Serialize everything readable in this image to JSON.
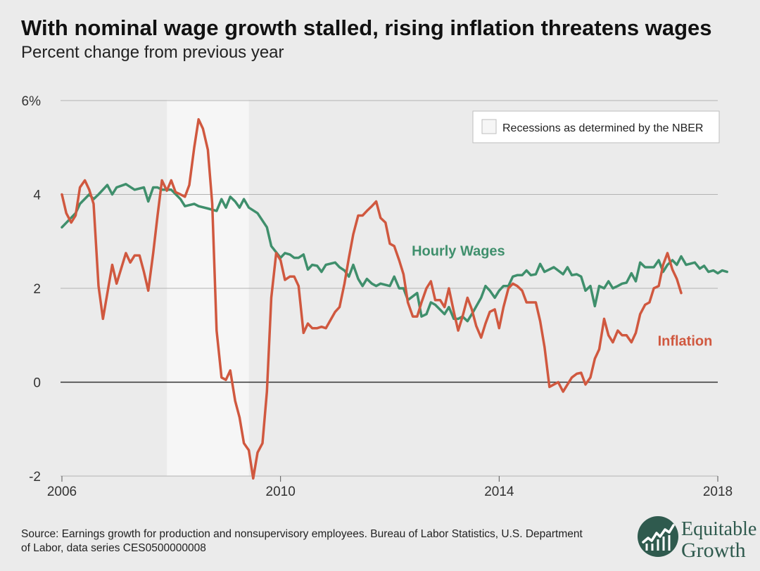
{
  "header": {
    "title": "With nominal wage growth stalled, rising inflation threatens wages",
    "subtitle": "Percent change from previous year"
  },
  "legend": {
    "recession_label": "Recessions as determined by the NBER"
  },
  "source": "Source: Earnings growth for production and nonsupervisory employees. Bureau of Labor Statistics, U.S. Department of Labor, data series CES0500000008",
  "logo": {
    "line1": "Equitable",
    "line2": "Growth",
    "color": "#2f5a4e"
  },
  "chart_data": {
    "type": "line",
    "title": "With nominal wage growth stalled, rising inflation threatens wages",
    "subtitle": "Percent change from previous year",
    "xlim": [
      2006,
      2018
    ],
    "ylim": [
      -2,
      6
    ],
    "x_ticks": [
      2006,
      2010,
      2014,
      2018
    ],
    "x_tick_labels": [
      "2006",
      "2010",
      "2014",
      "2018"
    ],
    "y_ticks": [
      -2,
      0,
      2,
      4,
      6
    ],
    "y_tick_labels": [
      "-2",
      "0",
      "2",
      "4",
      "6%"
    ],
    "grid": true,
    "legend_position": "top-right",
    "recession": {
      "start": 2007.92,
      "end": 2009.42,
      "label": "Recessions as determined by the NBER"
    },
    "series": [
      {
        "name": "Hourly Wages",
        "color": "#3f8f6c",
        "label_at": [
          2012.4,
          2.7
        ],
        "points": [
          [
            2006.0,
            3.3
          ],
          [
            2006.25,
            3.6
          ],
          [
            2006.33,
            3.8
          ],
          [
            2006.5,
            4.0
          ],
          [
            2006.58,
            3.9
          ],
          [
            2006.67,
            4.0
          ],
          [
            2006.83,
            4.2
          ],
          [
            2006.92,
            4.0
          ],
          [
            2007.0,
            4.15
          ],
          [
            2007.17,
            4.22
          ],
          [
            2007.33,
            4.1
          ],
          [
            2007.5,
            4.15
          ],
          [
            2007.58,
            3.85
          ],
          [
            2007.67,
            4.15
          ],
          [
            2007.75,
            4.15
          ],
          [
            2007.83,
            4.1
          ],
          [
            2008.0,
            4.1
          ],
          [
            2008.17,
            3.9
          ],
          [
            2008.25,
            3.75
          ],
          [
            2008.42,
            3.8
          ],
          [
            2008.5,
            3.75
          ],
          [
            2008.67,
            3.7
          ],
          [
            2008.83,
            3.65
          ],
          [
            2008.92,
            3.9
          ],
          [
            2009.0,
            3.72
          ],
          [
            2009.08,
            3.95
          ],
          [
            2009.17,
            3.85
          ],
          [
            2009.25,
            3.72
          ],
          [
            2009.33,
            3.9
          ],
          [
            2009.42,
            3.72
          ],
          [
            2009.58,
            3.6
          ],
          [
            2009.75,
            3.3
          ],
          [
            2009.83,
            2.9
          ],
          [
            2010.0,
            2.65
          ],
          [
            2010.08,
            2.75
          ],
          [
            2010.17,
            2.72
          ],
          [
            2010.25,
            2.65
          ],
          [
            2010.33,
            2.65
          ],
          [
            2010.42,
            2.72
          ],
          [
            2010.5,
            2.4
          ],
          [
            2010.58,
            2.5
          ],
          [
            2010.67,
            2.48
          ],
          [
            2010.75,
            2.35
          ],
          [
            2010.83,
            2.5
          ],
          [
            2011.0,
            2.55
          ],
          [
            2011.08,
            2.45
          ],
          [
            2011.17,
            2.38
          ],
          [
            2011.25,
            2.25
          ],
          [
            2011.33,
            2.5
          ],
          [
            2011.42,
            2.2
          ],
          [
            2011.5,
            2.05
          ],
          [
            2011.58,
            2.2
          ],
          [
            2011.67,
            2.1
          ],
          [
            2011.75,
            2.05
          ],
          [
            2011.83,
            2.1
          ],
          [
            2012.0,
            2.05
          ],
          [
            2012.08,
            2.25
          ],
          [
            2012.17,
            2.0
          ],
          [
            2012.25,
            2.0
          ],
          [
            2012.33,
            1.75
          ],
          [
            2012.5,
            1.9
          ],
          [
            2012.58,
            1.4
          ],
          [
            2012.67,
            1.45
          ],
          [
            2012.75,
            1.7
          ],
          [
            2012.83,
            1.65
          ],
          [
            2013.0,
            1.45
          ],
          [
            2013.08,
            1.6
          ],
          [
            2013.17,
            1.35
          ],
          [
            2013.25,
            1.35
          ],
          [
            2013.33,
            1.4
          ],
          [
            2013.42,
            1.3
          ],
          [
            2013.5,
            1.45
          ],
          [
            2013.67,
            1.8
          ],
          [
            2013.75,
            2.05
          ],
          [
            2013.83,
            1.95
          ],
          [
            2013.92,
            1.8
          ],
          [
            2014.0,
            1.95
          ],
          [
            2014.08,
            2.05
          ],
          [
            2014.17,
            2.05
          ],
          [
            2014.25,
            2.25
          ],
          [
            2014.33,
            2.28
          ],
          [
            2014.42,
            2.28
          ],
          [
            2014.5,
            2.38
          ],
          [
            2014.58,
            2.28
          ],
          [
            2014.67,
            2.3
          ],
          [
            2014.75,
            2.52
          ],
          [
            2014.83,
            2.35
          ],
          [
            2015.0,
            2.45
          ],
          [
            2015.17,
            2.3
          ],
          [
            2015.25,
            2.45
          ],
          [
            2015.33,
            2.28
          ],
          [
            2015.42,
            2.3
          ],
          [
            2015.5,
            2.25
          ],
          [
            2015.58,
            1.95
          ],
          [
            2015.67,
            2.05
          ],
          [
            2015.75,
            1.62
          ],
          [
            2015.83,
            2.05
          ],
          [
            2015.92,
            2.0
          ],
          [
            2016.0,
            2.15
          ],
          [
            2016.08,
            2.0
          ],
          [
            2016.17,
            2.05
          ],
          [
            2016.25,
            2.1
          ],
          [
            2016.33,
            2.12
          ],
          [
            2016.42,
            2.32
          ],
          [
            2016.5,
            2.15
          ],
          [
            2016.58,
            2.55
          ],
          [
            2016.67,
            2.45
          ],
          [
            2016.83,
            2.45
          ],
          [
            2016.92,
            2.6
          ],
          [
            2017.0,
            2.35
          ],
          [
            2017.08,
            2.5
          ],
          [
            2017.17,
            2.6
          ],
          [
            2017.25,
            2.5
          ],
          [
            2017.33,
            2.68
          ],
          [
            2017.42,
            2.5
          ],
          [
            2017.58,
            2.55
          ],
          [
            2017.67,
            2.42
          ],
          [
            2017.75,
            2.48
          ],
          [
            2017.83,
            2.35
          ],
          [
            2017.92,
            2.38
          ],
          [
            2018.0,
            2.32
          ],
          [
            2018.08,
            2.38
          ],
          [
            2018.17,
            2.35
          ]
        ]
      },
      {
        "name": "Inflation",
        "color": "#d0583f",
        "label_at": [
          2016.9,
          0.78
        ],
        "points": [
          [
            2006.0,
            4.0
          ],
          [
            2006.08,
            3.6
          ],
          [
            2006.17,
            3.4
          ],
          [
            2006.25,
            3.55
          ],
          [
            2006.33,
            4.15
          ],
          [
            2006.42,
            4.3
          ],
          [
            2006.5,
            4.1
          ],
          [
            2006.58,
            3.8
          ],
          [
            2006.67,
            2.05
          ],
          [
            2006.75,
            1.35
          ],
          [
            2006.92,
            2.5
          ],
          [
            2007.0,
            2.1
          ],
          [
            2007.17,
            2.75
          ],
          [
            2007.25,
            2.55
          ],
          [
            2007.33,
            2.7
          ],
          [
            2007.42,
            2.7
          ],
          [
            2007.5,
            2.35
          ],
          [
            2007.58,
            1.95
          ],
          [
            2007.67,
            2.75
          ],
          [
            2007.75,
            3.55
          ],
          [
            2007.83,
            4.3
          ],
          [
            2007.92,
            4.08
          ],
          [
            2008.0,
            4.3
          ],
          [
            2008.08,
            4.05
          ],
          [
            2008.17,
            4.0
          ],
          [
            2008.25,
            3.95
          ],
          [
            2008.33,
            4.2
          ],
          [
            2008.42,
            5.0
          ],
          [
            2008.5,
            5.6
          ],
          [
            2008.58,
            5.4
          ],
          [
            2008.67,
            4.95
          ],
          [
            2008.75,
            3.8
          ],
          [
            2008.83,
            1.1
          ],
          [
            2008.92,
            0.1
          ],
          [
            2009.0,
            0.05
          ],
          [
            2009.08,
            0.25
          ],
          [
            2009.17,
            -0.4
          ],
          [
            2009.25,
            -0.75
          ],
          [
            2009.33,
            -1.3
          ],
          [
            2009.42,
            -1.45
          ],
          [
            2009.5,
            -2.05
          ],
          [
            2009.58,
            -1.5
          ],
          [
            2009.67,
            -1.3
          ],
          [
            2009.75,
            -0.2
          ],
          [
            2009.83,
            1.8
          ],
          [
            2009.92,
            2.75
          ],
          [
            2010.0,
            2.6
          ],
          [
            2010.08,
            2.18
          ],
          [
            2010.17,
            2.25
          ],
          [
            2010.25,
            2.25
          ],
          [
            2010.33,
            2.05
          ],
          [
            2010.42,
            1.05
          ],
          [
            2010.5,
            1.25
          ],
          [
            2010.58,
            1.15
          ],
          [
            2010.67,
            1.15
          ],
          [
            2010.75,
            1.18
          ],
          [
            2010.83,
            1.15
          ],
          [
            2011.0,
            1.5
          ],
          [
            2011.08,
            1.6
          ],
          [
            2011.17,
            2.1
          ],
          [
            2011.25,
            2.65
          ],
          [
            2011.33,
            3.15
          ],
          [
            2011.42,
            3.55
          ],
          [
            2011.5,
            3.55
          ],
          [
            2011.58,
            3.65
          ],
          [
            2011.67,
            3.75
          ],
          [
            2011.75,
            3.85
          ],
          [
            2011.83,
            3.5
          ],
          [
            2011.92,
            3.4
          ],
          [
            2012.0,
            2.95
          ],
          [
            2012.08,
            2.9
          ],
          [
            2012.17,
            2.6
          ],
          [
            2012.25,
            2.3
          ],
          [
            2012.33,
            1.7
          ],
          [
            2012.42,
            1.4
          ],
          [
            2012.5,
            1.4
          ],
          [
            2012.58,
            1.7
          ],
          [
            2012.67,
            2.0
          ],
          [
            2012.75,
            2.15
          ],
          [
            2012.83,
            1.75
          ],
          [
            2012.92,
            1.75
          ],
          [
            2013.0,
            1.6
          ],
          [
            2013.08,
            2.0
          ],
          [
            2013.17,
            1.5
          ],
          [
            2013.25,
            1.1
          ],
          [
            2013.33,
            1.4
          ],
          [
            2013.42,
            1.8
          ],
          [
            2013.5,
            1.55
          ],
          [
            2013.58,
            1.2
          ],
          [
            2013.67,
            0.95
          ],
          [
            2013.75,
            1.25
          ],
          [
            2013.83,
            1.5
          ],
          [
            2013.92,
            1.55
          ],
          [
            2014.0,
            1.15
          ],
          [
            2014.08,
            1.6
          ],
          [
            2014.17,
            2.0
          ],
          [
            2014.25,
            2.1
          ],
          [
            2014.33,
            2.05
          ],
          [
            2014.42,
            1.95
          ],
          [
            2014.5,
            1.7
          ],
          [
            2014.58,
            1.7
          ],
          [
            2014.67,
            1.7
          ],
          [
            2014.75,
            1.3
          ],
          [
            2014.83,
            0.75
          ],
          [
            2014.92,
            -0.1
          ],
          [
            2015.0,
            -0.05
          ],
          [
            2015.08,
            0.0
          ],
          [
            2015.17,
            -0.2
          ],
          [
            2015.25,
            -0.05
          ],
          [
            2015.33,
            0.1
          ],
          [
            2015.42,
            0.18
          ],
          [
            2015.5,
            0.2
          ],
          [
            2015.58,
            -0.05
          ],
          [
            2015.67,
            0.1
          ],
          [
            2015.75,
            0.5
          ],
          [
            2015.83,
            0.7
          ],
          [
            2015.92,
            1.35
          ],
          [
            2016.0,
            1.0
          ],
          [
            2016.08,
            0.85
          ],
          [
            2016.17,
            1.1
          ],
          [
            2016.25,
            1.0
          ],
          [
            2016.33,
            1.0
          ],
          [
            2016.42,
            0.85
          ],
          [
            2016.5,
            1.05
          ],
          [
            2016.58,
            1.45
          ],
          [
            2016.67,
            1.65
          ],
          [
            2016.75,
            1.7
          ],
          [
            2016.83,
            2.0
          ],
          [
            2016.92,
            2.05
          ],
          [
            2017.0,
            2.5
          ],
          [
            2017.08,
            2.75
          ],
          [
            2017.17,
            2.4
          ],
          [
            2017.25,
            2.2
          ],
          [
            2017.33,
            1.9
          ]
        ]
      }
    ]
  }
}
